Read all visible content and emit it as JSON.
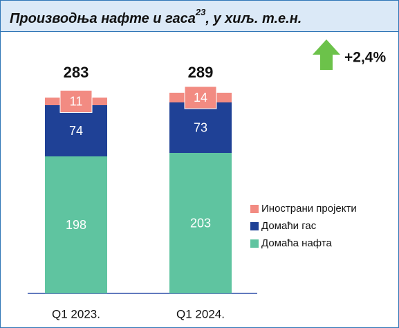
{
  "chart_data": {
    "type": "stacked_bar",
    "title": "Производња нафте и гаса",
    "title_superscript": "23",
    "title_suffix": ", у хиљ. т.е.н.",
    "categories": [
      "Q1 2023.",
      "Q1 2024."
    ],
    "series": [
      {
        "name": "Домаћа нафта",
        "color": "#5fc4a0",
        "values": [
          198,
          203
        ]
      },
      {
        "name": "Домаћи гас",
        "color": "#1f4196",
        "values": [
          74,
          73
        ]
      },
      {
        "name": "Инострани пројекти",
        "color": "#f28b82",
        "values": [
          11,
          14
        ]
      }
    ],
    "totals": [
      283,
      289
    ],
    "annotation": "+2,4%",
    "annotation_color": "#6cc24a"
  }
}
